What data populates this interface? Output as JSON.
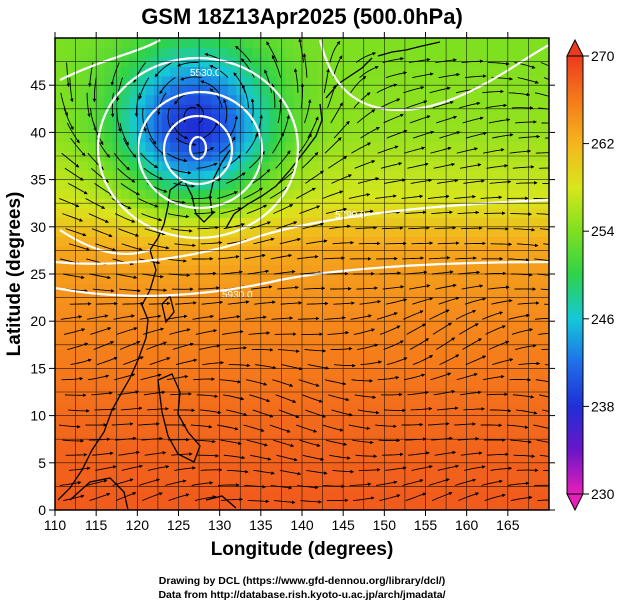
{
  "title": "GSM 18Z13Apr2025 (500.0hPa)",
  "xlabel": "Longitude (degrees)",
  "ylabel": "Latitude  (degrees)",
  "x_ticks": [
    "110",
    "115",
    "120",
    "125",
    "130",
    "135",
    "140",
    "145",
    "150",
    "155",
    "160",
    "165"
  ],
  "y_ticks": [
    "0",
    "5",
    "10",
    "15",
    "20",
    "25",
    "30",
    "35",
    "40",
    "45"
  ],
  "colorbar": {
    "ticks": [
      "230",
      "238",
      "246",
      "254",
      "262",
      "270"
    ],
    "min": 230,
    "max": 270,
    "stops": [
      "#e61fb8",
      "#6a16c8",
      "#1f2fd6",
      "#1f6fe8",
      "#15c8d8",
      "#2ed24a",
      "#7fe020",
      "#d8e61c",
      "#f5b51d",
      "#f57a1b",
      "#ec3a1e"
    ]
  },
  "contour_labels": [
    "5530.0",
    "5790.0",
    "5930.0"
  ],
  "credits": {
    "line1": "Drawing by DCL (https://www.gfd-dennou.org/library/dcl/)",
    "line2": "Data from http://database.rish.kyoto-u.ac.jp/arch/jmadata/"
  },
  "chart_data": {
    "type": "heatmap",
    "title": "GSM 18Z13Apr2025 (500.0hPa)",
    "xlabel": "Longitude (degrees)",
    "ylabel": "Latitude  (degrees)",
    "xlim": [
      110,
      170
    ],
    "ylim": [
      0,
      50
    ],
    "x": [
      110,
      115,
      120,
      125,
      130,
      135,
      140,
      145,
      150,
      155,
      160,
      165
    ],
    "y": [
      0,
      5,
      10,
      15,
      20,
      25,
      30,
      35,
      40,
      45
    ],
    "value_range": [
      230,
      270
    ],
    "low_center": {
      "lon": 127,
      "lat": 40.5,
      "value": 238
    },
    "zonal_profile": [
      {
        "lat": 48,
        "value": 254
      },
      {
        "lat": 40,
        "value": 255
      },
      {
        "lat": 33,
        "value": 258
      },
      {
        "lat": 28,
        "value": 263
      },
      {
        "lat": 20,
        "value": 265
      },
      {
        "lat": 10,
        "value": 267
      },
      {
        "lat": 0,
        "value": 268
      }
    ],
    "contours": [
      "5530.0",
      "5790.0",
      "5930.0"
    ],
    "overlay": "streamlines"
  }
}
